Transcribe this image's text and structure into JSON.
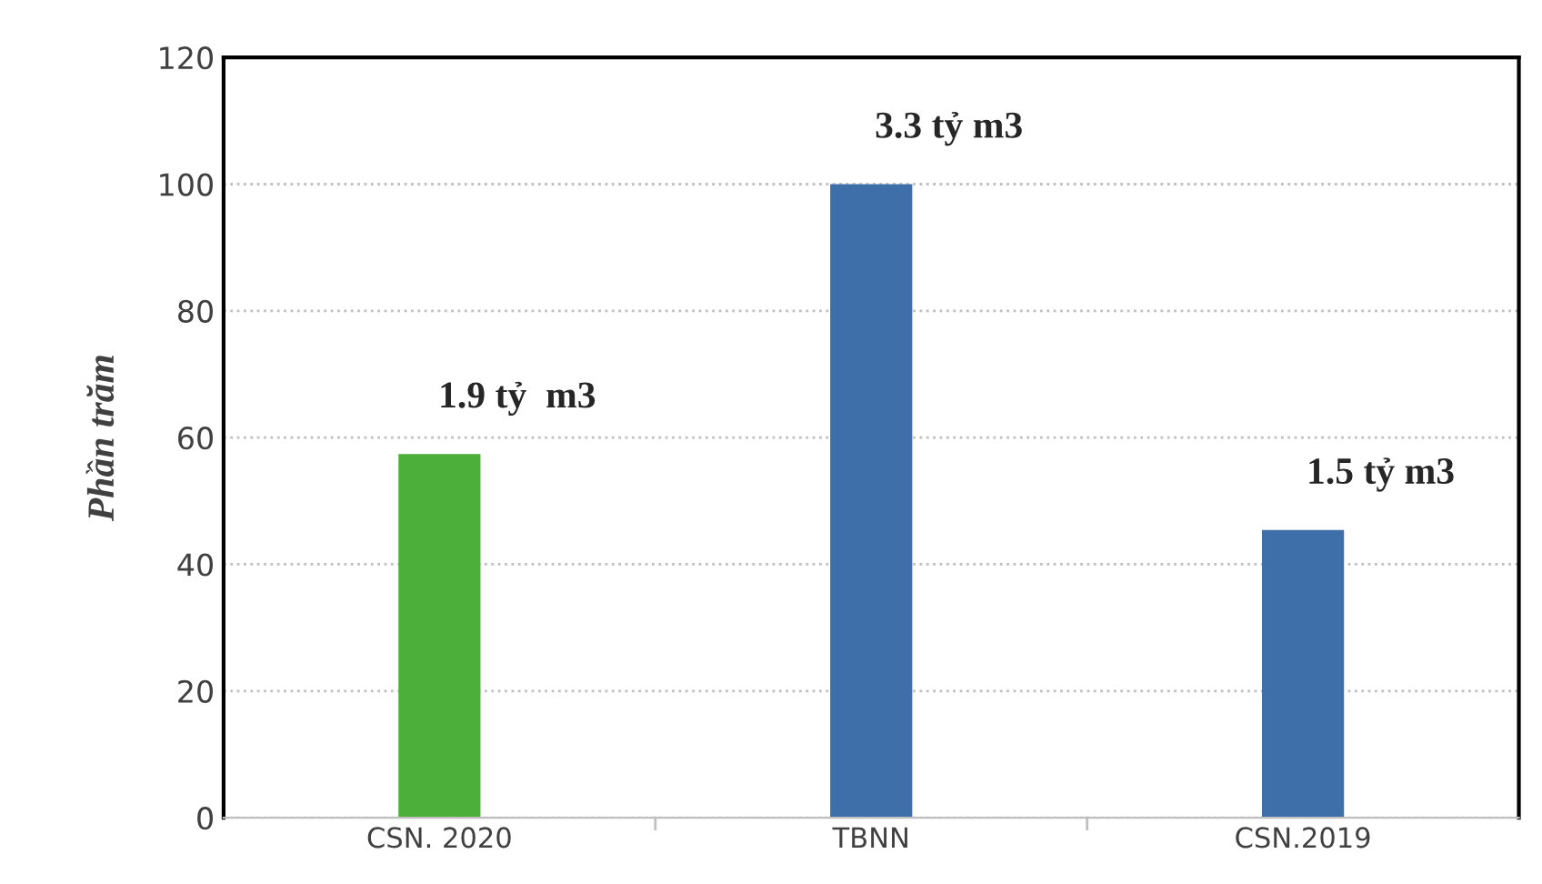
{
  "chart_data": {
    "type": "bar",
    "ylabel": "Phần trăm",
    "categories": [
      "CSN. 2020",
      "TBNN",
      "CSN.2019"
    ],
    "values": [
      57.4,
      100,
      45.4
    ],
    "colors": [
      "#4caf3a",
      "#3f6fa8",
      "#3f6fa8"
    ],
    "ylim": [
      0,
      120
    ],
    "yticks": [
      0,
      20,
      40,
      60,
      80,
      100,
      120
    ],
    "grid": "y",
    "annotations": [
      "1.9 tỷ  m3",
      "3.3 tỷ m3",
      "1.5 tỷ m3"
    ]
  }
}
